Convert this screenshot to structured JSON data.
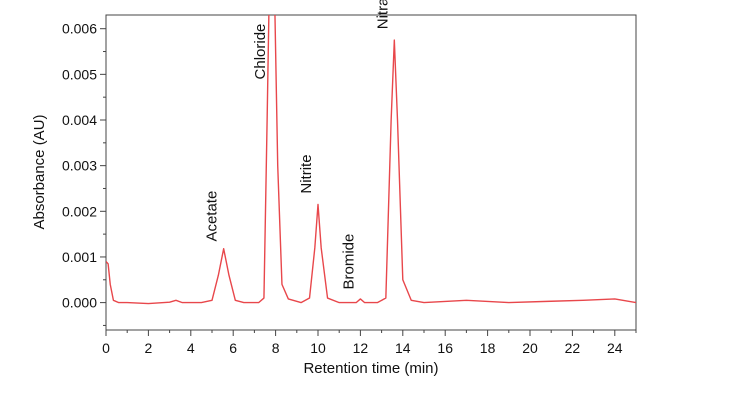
{
  "chart_data": {
    "type": "line",
    "title": "",
    "xlabel": "Retention time (min)",
    "ylabel": "Absorbance (AU)",
    "xlim": [
      0,
      25
    ],
    "ylim": [
      -0.0006,
      0.0063
    ],
    "xticks": [
      0,
      2,
      4,
      6,
      8,
      10,
      12,
      14,
      16,
      18,
      20,
      22,
      24
    ],
    "yticks": [
      0.0,
      0.001,
      0.002,
      0.003,
      0.004,
      0.005,
      0.006
    ],
    "ytick_labels": [
      "0.000",
      "0.001",
      "0.002",
      "0.003",
      "0.004",
      "0.005",
      "0.006"
    ],
    "grid": false,
    "line_color": "#e8474b",
    "series": [
      {
        "values": [
          [
            0.0,
            0.0009
          ],
          [
            0.1,
            0.00085
          ],
          [
            0.2,
            0.0004
          ],
          [
            0.35,
            5e-05
          ],
          [
            0.6,
            0.0
          ],
          [
            1.0,
            0.0
          ],
          [
            2.0,
            -2e-05
          ],
          [
            3.0,
            1e-05
          ],
          [
            3.3,
            5e-05
          ],
          [
            3.6,
            0.0
          ],
          [
            4.5,
            0.0
          ],
          [
            5.0,
            5e-05
          ],
          [
            5.3,
            0.0006
          ],
          [
            5.55,
            0.00118
          ],
          [
            5.8,
            0.0006
          ],
          [
            6.1,
            5e-05
          ],
          [
            6.5,
            0.0
          ],
          [
            7.2,
            0.0
          ],
          [
            7.45,
            0.0001
          ],
          [
            7.6,
            0.004
          ],
          [
            7.7,
            0.0068
          ],
          [
            7.95,
            0.0068
          ],
          [
            8.1,
            0.003
          ],
          [
            8.3,
            0.0004
          ],
          [
            8.6,
            8e-05
          ],
          [
            9.2,
            0.0
          ],
          [
            9.6,
            0.0001
          ],
          [
            9.85,
            0.0012
          ],
          [
            10.0,
            0.00215
          ],
          [
            10.15,
            0.0012
          ],
          [
            10.45,
            0.0001
          ],
          [
            11.0,
            0.0
          ],
          [
            11.8,
            0.0
          ],
          [
            12.0,
            8e-05
          ],
          [
            12.2,
            0.0
          ],
          [
            12.8,
            0.0
          ],
          [
            13.2,
            0.0001
          ],
          [
            13.45,
            0.004
          ],
          [
            13.6,
            0.00575
          ],
          [
            13.75,
            0.004
          ],
          [
            14.0,
            0.0005
          ],
          [
            14.4,
            5e-05
          ],
          [
            15.0,
            0.0
          ],
          [
            17.0,
            5e-05
          ],
          [
            19.0,
            0.0
          ],
          [
            21.0,
            3e-05
          ],
          [
            22.5,
            5e-05
          ],
          [
            24.0,
            8e-05
          ],
          [
            25.0,
            0.0
          ]
        ]
      }
    ],
    "annotations": [
      {
        "text": "Acetate",
        "x": 5.55,
        "y": 0.00125
      },
      {
        "text": "Chloride",
        "x": 7.82,
        "y": 0.0048
      },
      {
        "text": "Nitrite",
        "x": 10.0,
        "y": 0.0023
      },
      {
        "text": "Bromide",
        "x": 12.0,
        "y": 0.0002
      },
      {
        "text": "Nitrate",
        "x": 13.6,
        "y": 0.0059
      }
    ]
  }
}
